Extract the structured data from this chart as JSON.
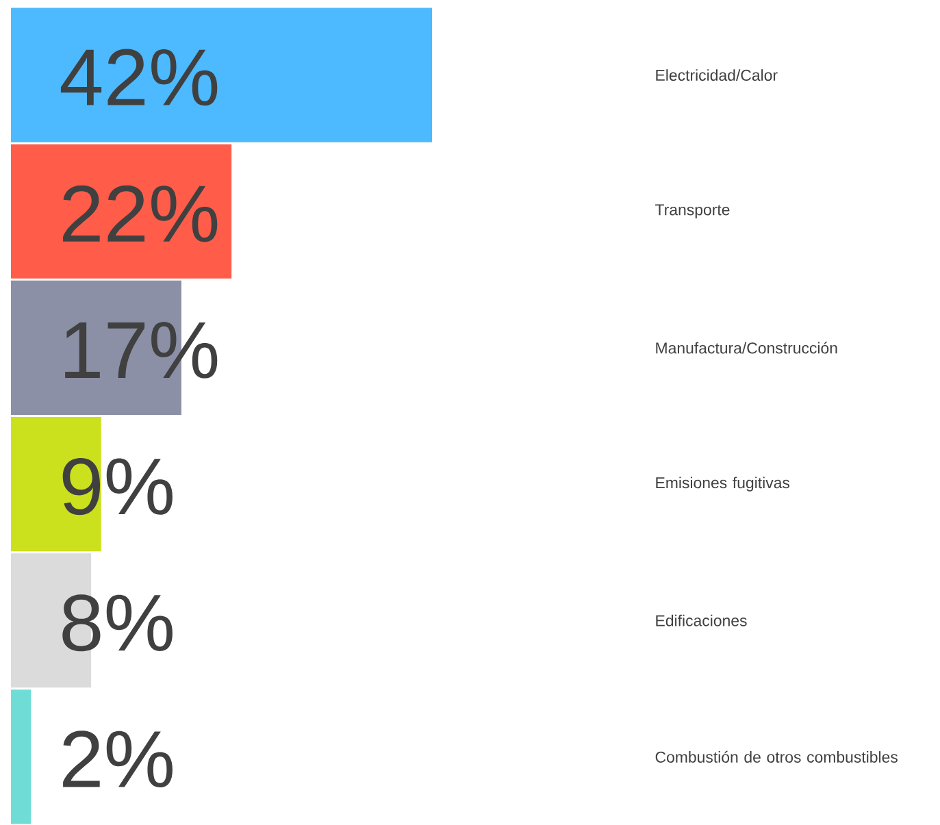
{
  "chart_data": {
    "type": "bar",
    "orientation": "horizontal",
    "categories": [
      "Electricidad/Calor",
      "Transporte",
      "Manufactura/Construcción",
      "Emisiones fugitivas",
      "Edificaciones",
      "Combustión de otros combustibles"
    ],
    "values": [
      42,
      22,
      17,
      9,
      8,
      2
    ],
    "colors": [
      "#4db9ff",
      "#ff5d4a",
      "#8b90a6",
      "#cce11e",
      "#dbdbdb",
      "#6fddd6"
    ],
    "value_labels": [
      "42%",
      "22%",
      "17%",
      "9%",
      "8%",
      "2%"
    ]
  }
}
